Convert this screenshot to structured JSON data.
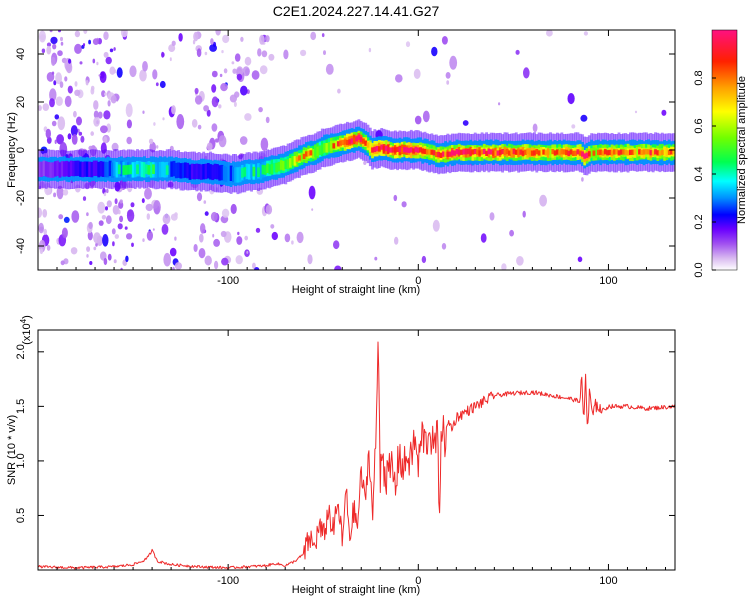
{
  "title": "C2E1.2024.227.14.41.G27",
  "chart_data": [
    {
      "type": "heatmap",
      "xlabel": "Height of straight line (km)",
      "ylabel": "Frequency (Hz)",
      "xlim": [
        -200,
        135
      ],
      "ylim": [
        -50,
        50
      ],
      "x_ticks": [
        -100,
        0,
        100
      ],
      "x_tick_labels": [
        "-100",
        "0",
        "100"
      ],
      "y_ticks": [
        -40,
        -20,
        0,
        20,
        40
      ],
      "y_tick_labels": [
        "-40",
        "-20",
        "0",
        "20",
        "40"
      ],
      "colorbar": {
        "label": "Normalized spectral amplitude",
        "range": [
          0,
          1
        ],
        "ticks": [
          0.0,
          0.2,
          0.4,
          0.6,
          0.8
        ],
        "tick_labels": [
          "0.0",
          "0.2",
          "0.4",
          "0.6",
          "0.8"
        ],
        "colors": [
          "#ffffff",
          "#d8b8f0",
          "#a050f0",
          "#6a00ff",
          "#0000ff",
          "#0090ff",
          "#00ffff",
          "#00ff50",
          "#70ff00",
          "#ffff00",
          "#ffa000",
          "#ff2000",
          "#ff1080"
        ]
      },
      "ridge": {
        "x": [
          -195,
          -180,
          -170,
          -160,
          -150,
          -140,
          -130,
          -120,
          -110,
          -100,
          -95,
          -90,
          -85,
          -80,
          -75,
          -70,
          -65,
          -60,
          -55,
          -50,
          -45,
          -40,
          -35,
          -32,
          -30,
          -27,
          -25,
          -20,
          -15,
          -10,
          -5,
          0,
          5,
          10,
          20,
          40,
          60,
          80,
          85,
          87,
          90,
          100,
          120,
          135
        ],
        "y": [
          -8,
          -8,
          -8,
          -8,
          -8,
          -8,
          -8,
          -9,
          -9,
          -10,
          -10,
          -9,
          -9,
          -8,
          -7,
          -6,
          -4,
          -2,
          -1,
          1,
          2,
          3,
          4,
          5,
          4,
          2,
          0,
          1,
          0,
          0,
          0,
          0,
          -1,
          -2,
          -1,
          -1,
          -1,
          -1,
          -1,
          -3,
          -1,
          -1,
          -1,
          -1
        ],
        "peak_amplitude": [
          0.2,
          0.3,
          0.3,
          0.45,
          0.5,
          0.55,
          0.4,
          0.3,
          0.3,
          0.4,
          0.45,
          0.5,
          0.5,
          0.55,
          0.6,
          0.65,
          0.7,
          0.75,
          0.7,
          0.6,
          0.75,
          0.8,
          0.9,
          0.95,
          0.8,
          0.7,
          0.85,
          0.95,
          0.9,
          0.9,
          0.95,
          0.95,
          0.75,
          0.8,
          0.9,
          0.85,
          0.8,
          0.78,
          0.85,
          0.95,
          0.75,
          0.75,
          0.8,
          0.75
        ]
      }
    },
    {
      "type": "line",
      "xlabel": "Height of straight line (km)",
      "ylabel": "SNR (10 * v/v)",
      "scale_note": "(x10^4)",
      "xlim": [
        -200,
        135
      ],
      "ylim": [
        0,
        2.2
      ],
      "x_ticks": [
        -100,
        0,
        100
      ],
      "x_tick_labels": [
        "-100",
        "0",
        "100"
      ],
      "y_ticks": [
        0.5,
        1.0,
        1.5,
        2.0
      ],
      "y_tick_labels": [
        "0.5",
        "1.0",
        "1.5",
        "2.0"
      ],
      "color": "#ee2a2a",
      "x": [
        -200,
        -180,
        -160,
        -150,
        -145,
        -142,
        -140,
        -137,
        -130,
        -115,
        -100,
        -90,
        -80,
        -75,
        -70,
        -65,
        -60,
        -57,
        -55,
        -52,
        -50,
        -47,
        -45,
        -42,
        -40,
        -38,
        -36,
        -34,
        -32,
        -30,
        -28,
        -26,
        -24,
        -22,
        -21,
        -20,
        -19,
        -18,
        -16,
        -14,
        -12,
        -10,
        -8,
        -6,
        -4,
        -2,
        0,
        2,
        4,
        6,
        8,
        10,
        11,
        12,
        14,
        16,
        18,
        20,
        25,
        30,
        40,
        50,
        60,
        70,
        80,
        84,
        86,
        87,
        88,
        89,
        90,
        92,
        94,
        96,
        100,
        110,
        120,
        135
      ],
      "y": [
        0.03,
        0.02,
        0.03,
        0.05,
        0.08,
        0.12,
        0.18,
        0.08,
        0.05,
        0.03,
        0.02,
        0.03,
        0.04,
        0.06,
        0.04,
        0.08,
        0.15,
        0.3,
        0.2,
        0.4,
        0.3,
        0.55,
        0.35,
        0.6,
        0.25,
        0.72,
        0.3,
        0.55,
        0.4,
        0.9,
        0.6,
        1.1,
        0.5,
        1.35,
        2.2,
        0.8,
        1.25,
        0.9,
        0.85,
        0.95,
        0.75,
        1.1,
        0.9,
        1.05,
        1.0,
        1.2,
        0.95,
        1.25,
        1.15,
        1.3,
        1.1,
        1.25,
        0.5,
        1.3,
        1.2,
        1.35,
        1.3,
        1.4,
        1.45,
        1.5,
        1.6,
        1.62,
        1.63,
        1.6,
        1.57,
        1.55,
        1.7,
        1.35,
        1.8,
        1.25,
        1.6,
        1.4,
        1.55,
        1.45,
        1.5,
        1.5,
        1.48,
        1.5
      ]
    }
  ]
}
